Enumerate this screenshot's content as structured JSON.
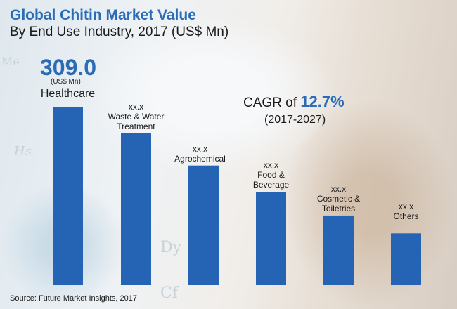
{
  "chart_data": {
    "type": "bar",
    "title": "Global Chitin Market Value",
    "subtitle": "By End Use Industry, 2017 (US$ Mn)",
    "categories": [
      "Healthcare",
      "Waste & Water Treatment",
      "Agrochemical",
      "Food & Beverage",
      "Cosmetic & Toiletries",
      "Others"
    ],
    "values": [
      309.0,
      264,
      208,
      162,
      121,
      90
    ],
    "value_labels": [
      "309.0",
      "xx.x",
      "xx.x",
      "xx.x",
      "xx.x",
      "xx.x"
    ],
    "highlight_unit": "(US$ Mn)",
    "xlabel": "",
    "ylabel": "",
    "ylim": [
      0,
      320
    ],
    "grid": false,
    "bar_color": "#2563b5",
    "annotation": {
      "prefix": "CAGR of ",
      "value": "12.7%",
      "period": "(2017-2027)"
    },
    "source": "Source: Future Market Insights, 2017"
  }
}
